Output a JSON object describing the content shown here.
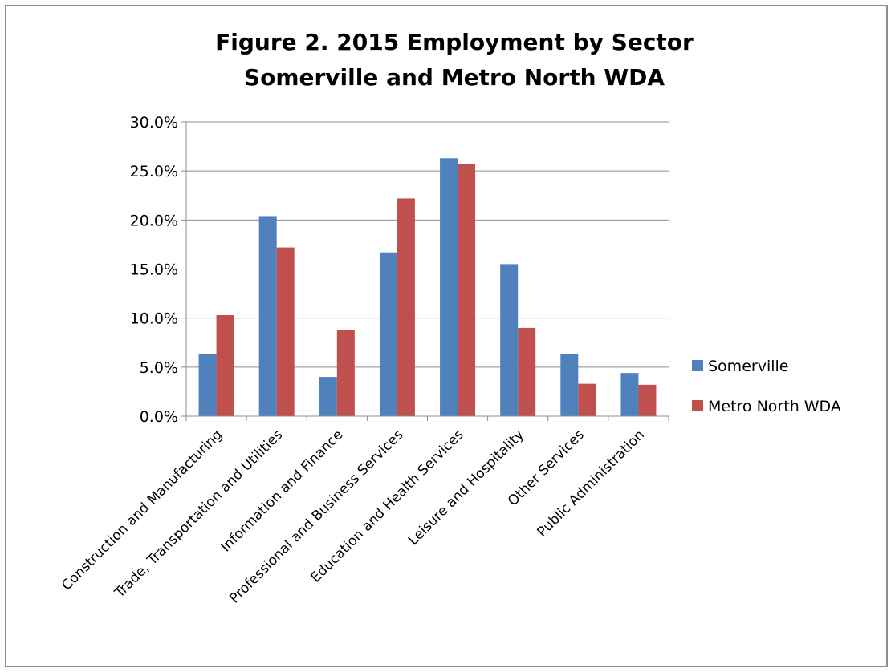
{
  "chart_data": {
    "type": "bar",
    "title_lines": [
      "Figure 2.  2015 Employment by Sector",
      "Somerville and Metro North  WDA"
    ],
    "xlabel": "",
    "ylabel": "",
    "ylim": [
      0,
      0.3
    ],
    "y_ticks": [
      "0.0%",
      "5.0%",
      "10.0%",
      "15.0%",
      "20.0%",
      "25.0%",
      "30.0%"
    ],
    "y_tick_values": [
      0,
      0.05,
      0.1,
      0.15,
      0.2,
      0.25,
      0.3
    ],
    "grid": true,
    "legend_position": "right",
    "categories": [
      "Construction and Manufacturing",
      "Trade, Transportation and Utilities",
      "Information and Finance",
      "Professional and Business Services",
      "Education and Health Services",
      "Leisure and Hospitality",
      "Other Services",
      "Public Administration"
    ],
    "series": [
      {
        "name": "Somerville",
        "color": "#4F81BD",
        "values": [
          0.063,
          0.204,
          0.04,
          0.167,
          0.263,
          0.155,
          0.063,
          0.044
        ]
      },
      {
        "name": "Metro North WDA",
        "color": "#C0504D",
        "values": [
          0.103,
          0.172,
          0.088,
          0.222,
          0.257,
          0.09,
          0.033,
          0.032
        ]
      }
    ]
  }
}
